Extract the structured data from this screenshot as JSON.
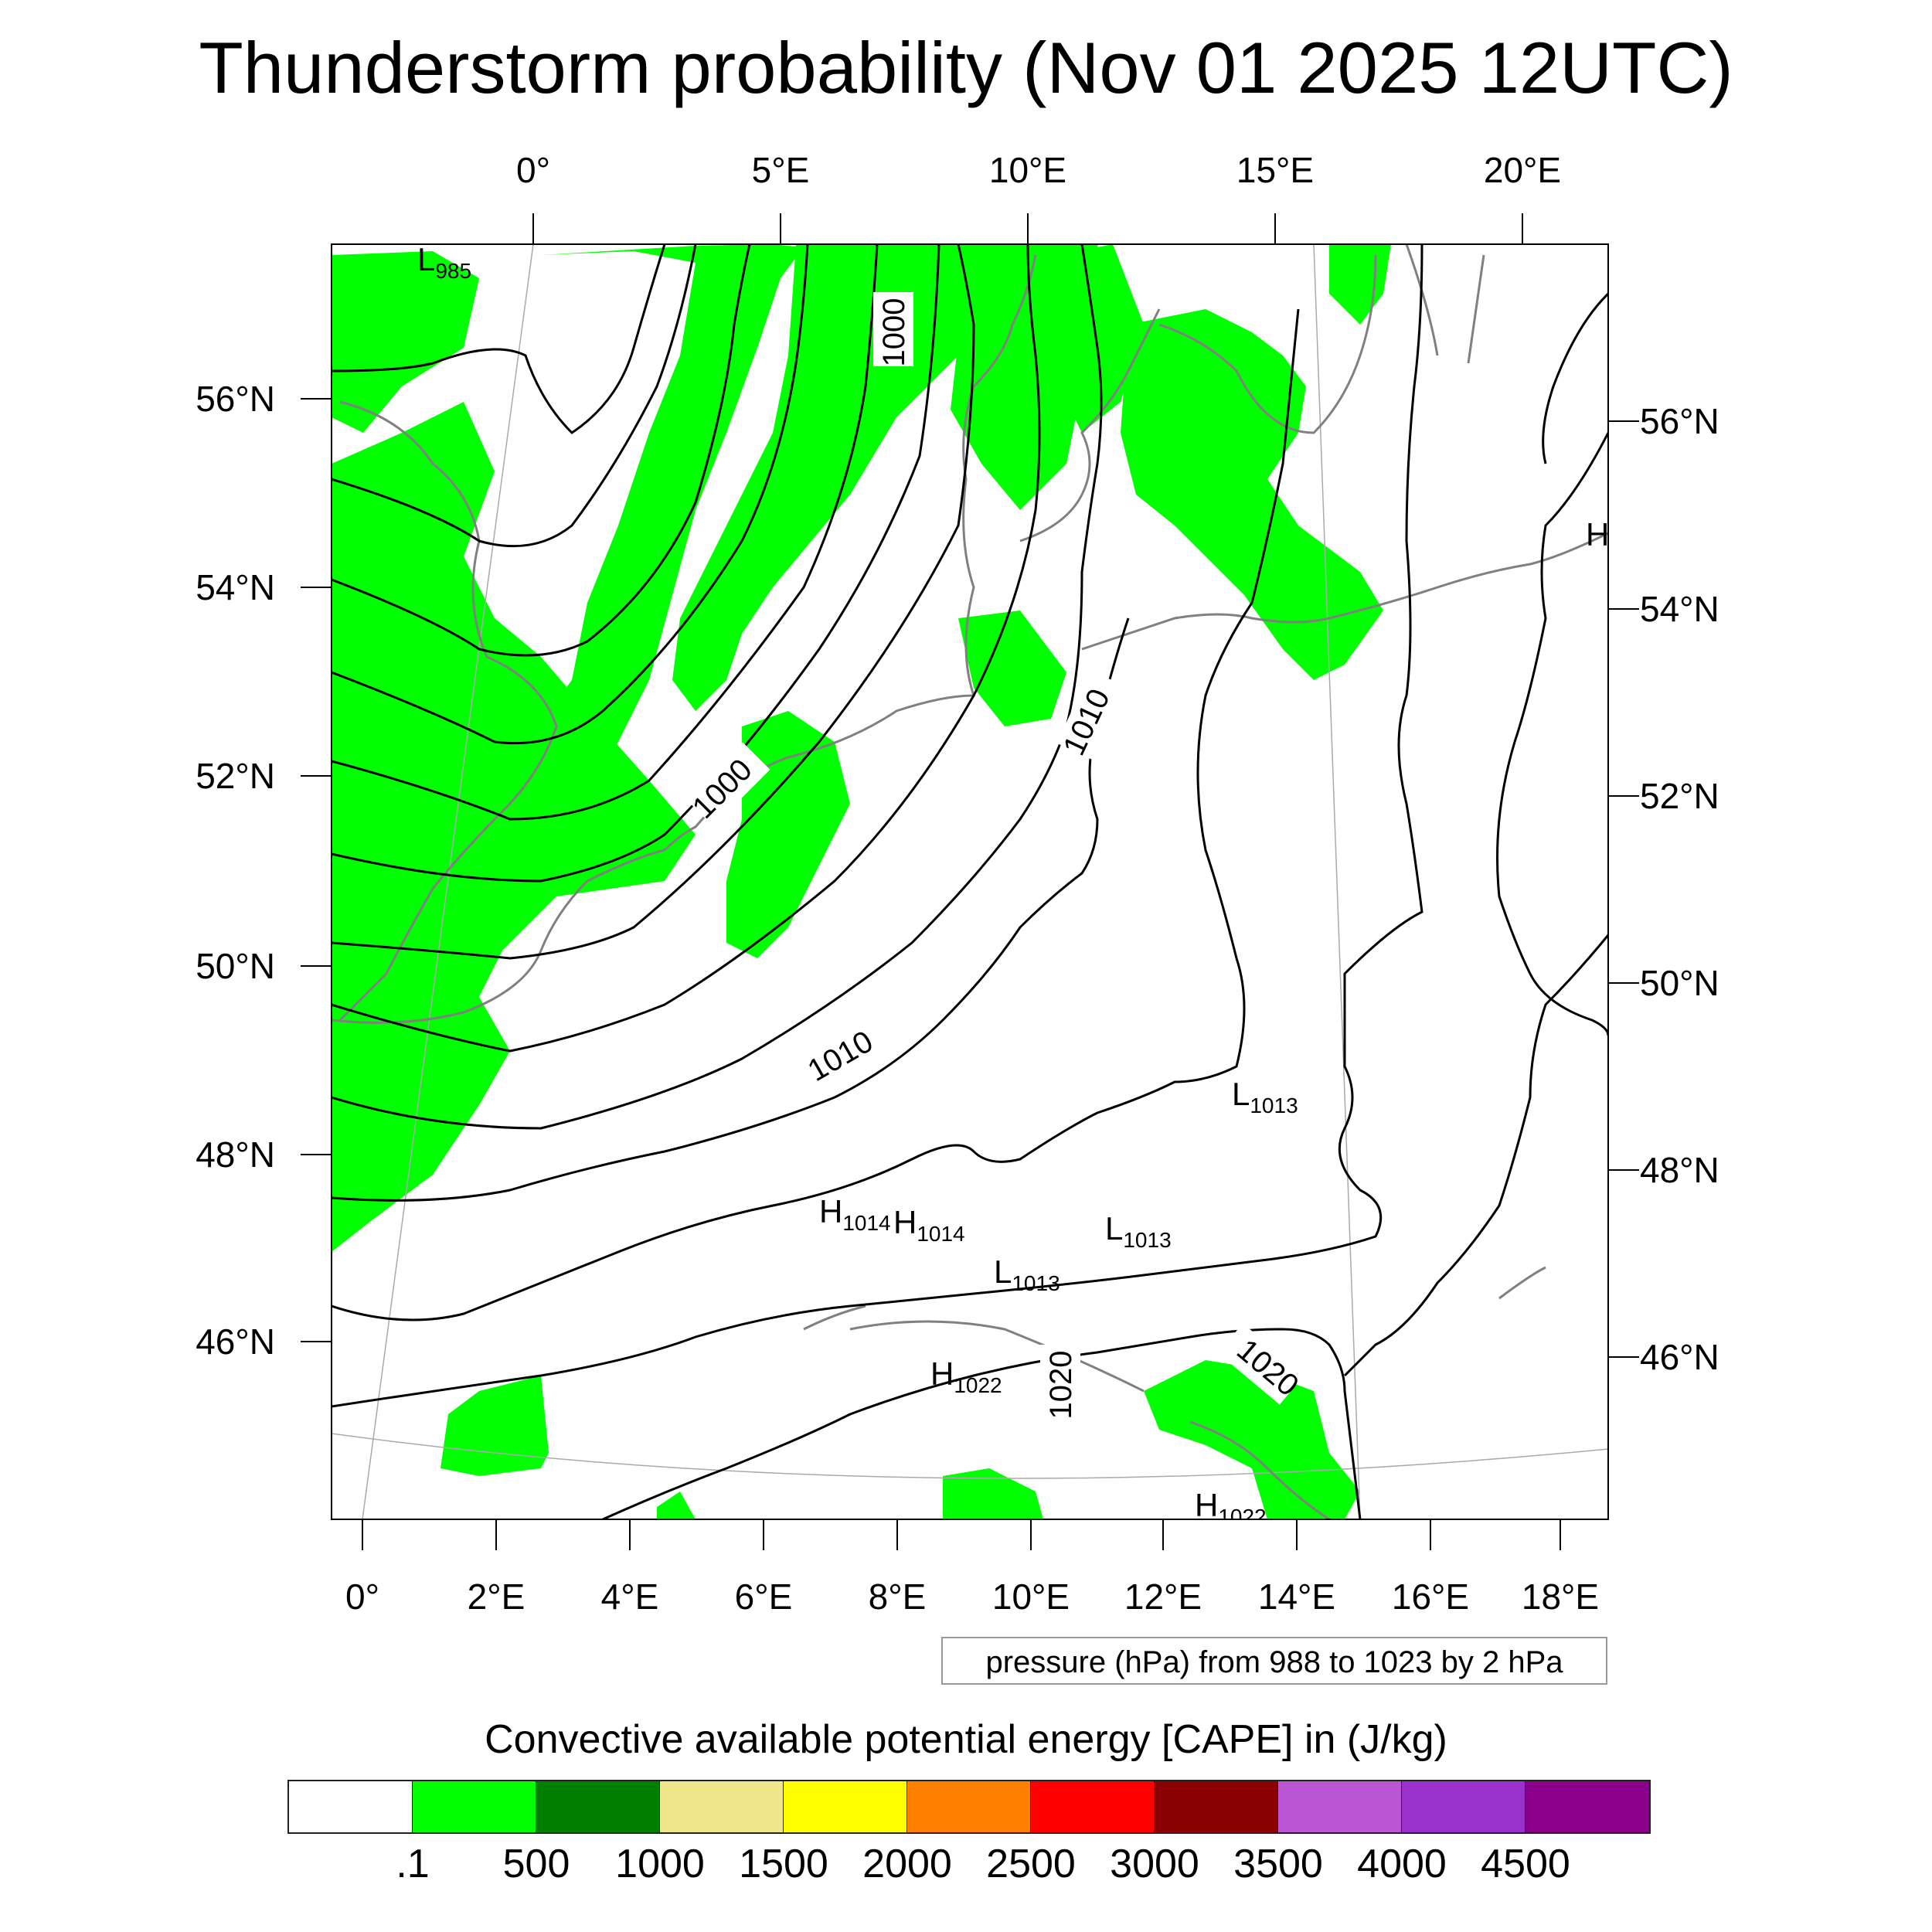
{
  "title": "Thunderstorm probability (Nov 01 2025 12UTC)",
  "top_lon_labels": [
    "0°",
    "5°E",
    "10°E",
    "15°E",
    "20°E"
  ],
  "bottom_lon_labels": [
    "0°",
    "2°E",
    "4°E",
    "6°E",
    "8°E",
    "10°E",
    "12°E",
    "14°E",
    "16°E",
    "18°E"
  ],
  "left_lat_labels": [
    "56°N",
    "54°N",
    "52°N",
    "50°N",
    "48°N",
    "46°N"
  ],
  "right_lat_labels": [
    "56°N",
    "54°N",
    "52°N",
    "50°N",
    "48°N",
    "46°N"
  ],
  "contour_labels": [
    "1000",
    "1000",
    "1010",
    "1010",
    "1020",
    "1020"
  ],
  "pressure_centers": [
    {
      "type": "L",
      "value": "985"
    },
    {
      "type": "L",
      "value": "1013"
    },
    {
      "type": "H",
      "value": "1014"
    },
    {
      "type": "H",
      "value": "1014"
    },
    {
      "type": "L",
      "value": "1013"
    },
    {
      "type": "L",
      "value": "1013"
    },
    {
      "type": "H",
      "value": "1022"
    },
    {
      "type": "H",
      "value": "1022"
    },
    {
      "type": "H",
      "value": ""
    }
  ],
  "pressure_note": "pressure (hPa) from 988 to 1023 by 2 hPa",
  "colorbar": {
    "title": "Convective available potential energy [CAPE] in (J/kg)",
    "colors": [
      "#ffffff",
      "#00ff00",
      "#007f00",
      "#f0e68c",
      "#ffff00",
      "#ff8000",
      "#ff0000",
      "#8b0000",
      "#ba55d3",
      "#9932cc",
      "#8b008b"
    ],
    "labels": [
      ".1",
      "500",
      "1000",
      "1500",
      "2000",
      "2500",
      "3000",
      "3500",
      "4000",
      "4500"
    ]
  },
  "colors": {
    "cape_fill": "#00ff00",
    "isobar": "#000000",
    "coastline": "#808080",
    "graticule": "#aaaaaa"
  }
}
